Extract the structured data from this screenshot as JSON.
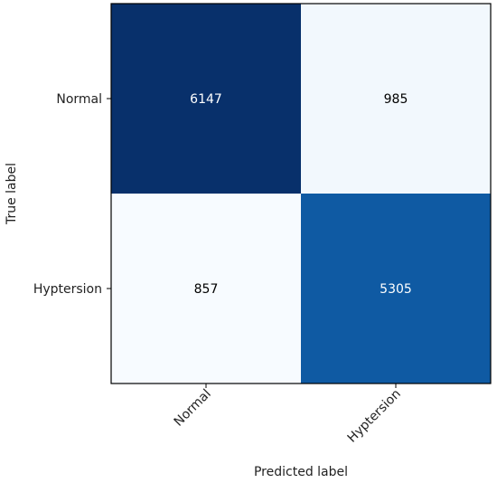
{
  "chart_data": {
    "type": "heatmap",
    "title": "",
    "xlabel": "Predicted label",
    "ylabel": "True label",
    "x_categories": [
      "Normal",
      "Hyptersion"
    ],
    "y_categories": [
      "Normal",
      "Hyptersion"
    ],
    "values": [
      [
        6147,
        985
      ],
      [
        857,
        5305
      ]
    ],
    "value_labels": [
      [
        "6147",
        "985"
      ],
      [
        "857",
        "5305"
      ]
    ],
    "colormap": "Blues",
    "color_low": "#f7fbff",
    "color_high": "#08306b",
    "grid": false,
    "colorbar": false
  }
}
